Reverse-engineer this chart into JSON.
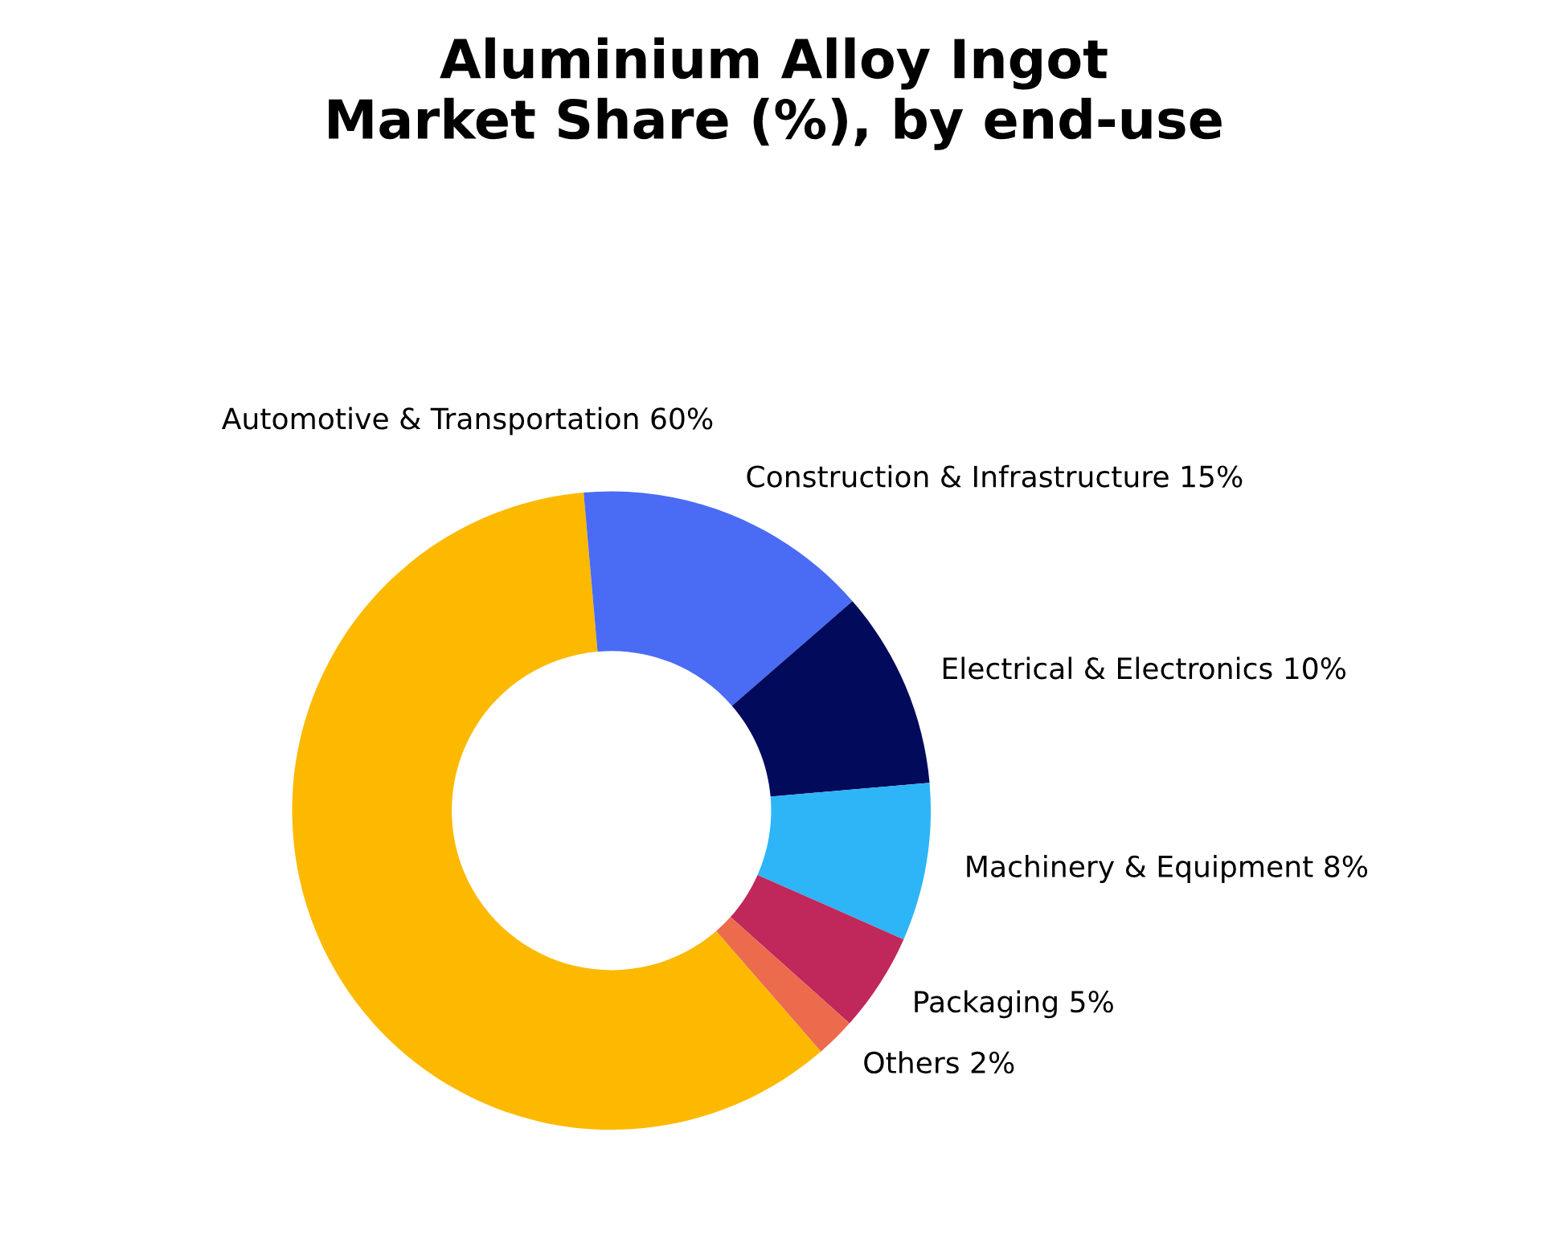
{
  "chart_data": {
    "type": "donut",
    "title": "Aluminium Alloy Ingot\nMarket Share (%), by end-use",
    "categories": [
      "Automotive & Transportation",
      "Construction & Infrastructure",
      "Electrical & Electronics",
      "Machinery & Equipment",
      "Packaging",
      "Others"
    ],
    "values": [
      60,
      15,
      10,
      8,
      5,
      2
    ],
    "value_labels": [
      "60%",
      "15%",
      "10%",
      "8%",
      "5%",
      "2%"
    ],
    "colors": [
      "#fdb900",
      "#4a6cf4",
      "#020a5c",
      "#2eb5f7",
      "#c0275a",
      "#ec6b4d"
    ],
    "legend": false
  }
}
